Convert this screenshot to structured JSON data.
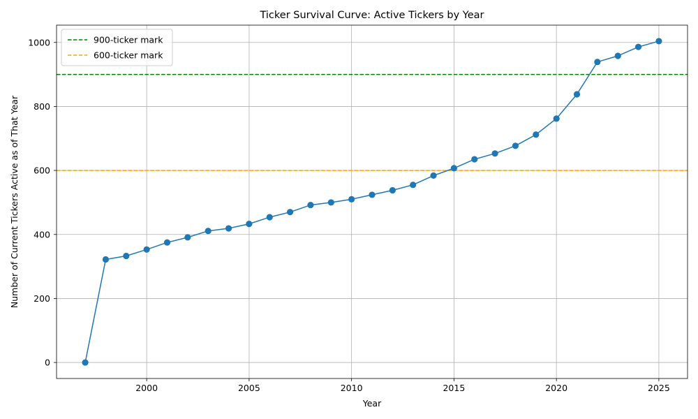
{
  "chart_data": {
    "type": "line",
    "title": "Ticker Survival Curve: Active Tickers by Year",
    "xlabel": "Year",
    "ylabel": "Number of Current Tickers Active as of That Year",
    "xlim": [
      1995.6,
      2026.4
    ],
    "ylim": [
      -50,
      1054
    ],
    "xticks": [
      2000,
      2005,
      2010,
      2015,
      2020,
      2025
    ],
    "yticks": [
      0,
      200,
      400,
      600,
      800,
      1000
    ],
    "grid": true,
    "legend_position": "upper-left",
    "series": [
      {
        "color": "#1f77b4",
        "marker": "circle",
        "x": [
          1997,
          1998,
          1999,
          2000,
          2001,
          2002,
          2003,
          2004,
          2005,
          2006,
          2007,
          2008,
          2009,
          2010,
          2011,
          2012,
          2013,
          2014,
          2015,
          2016,
          2017,
          2018,
          2019,
          2020,
          2021,
          2022,
          2023,
          2024,
          2025
        ],
        "y": [
          0,
          322,
          333,
          353,
          375,
          391,
          411,
          419,
          433,
          454,
          470,
          492,
          500,
          510,
          524,
          538,
          555,
          584,
          607,
          635,
          653,
          677,
          712,
          762,
          838,
          939,
          958,
          986,
          1004
        ]
      }
    ],
    "reference_lines": [
      {
        "name": "900-ticker mark",
        "y": 900,
        "color": "#008000",
        "style": "dashed"
      },
      {
        "name": "600-ticker mark",
        "y": 600,
        "color": "#ffa500",
        "style": "dashed"
      }
    ]
  }
}
